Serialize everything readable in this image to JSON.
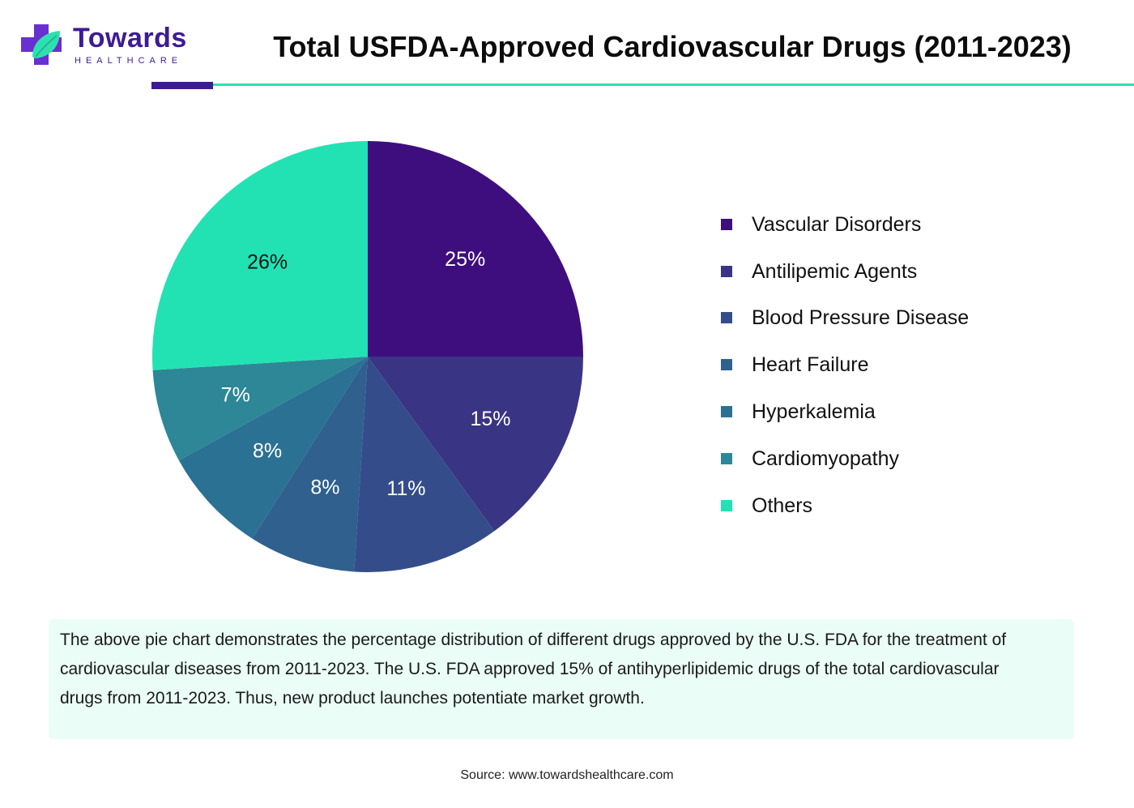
{
  "logo": {
    "wordmark": "Towards",
    "subtitle": "HEALTHCARE"
  },
  "header": {
    "title": "Total USFDA-Approved Cardiovascular Drugs (2011-2023)"
  },
  "colors": {
    "accent": "#3d1b94",
    "rule": "#2ee0b0",
    "note_bg": "#eafdf6"
  },
  "chart_data": {
    "type": "pie",
    "title": "Total USFDA-Approved Cardiovascular Drugs (2011-2023)",
    "start_angle": "12 o'clock",
    "direction": "clockwise",
    "legend_position": "right",
    "slices": [
      {
        "name": "Vascular Disorders",
        "value": 25,
        "label": "25%",
        "color": "#3e0e7e",
        "label_color": "#ffffff"
      },
      {
        "name": "Antilipemic Agents",
        "value": 15,
        "label": "15%",
        "color": "#3a3484",
        "label_color": "#ffffff"
      },
      {
        "name": "Blood Pressure Disease",
        "value": 11,
        "label": "11%",
        "color": "#344d8a",
        "label_color": "#ffffff"
      },
      {
        "name": "Heart Failure",
        "value": 8,
        "label": "8%",
        "color": "#2f608e",
        "label_color": "#ffffff"
      },
      {
        "name": "Hyperkalemia",
        "value": 8,
        "label": "8%",
        "color": "#2b7193",
        "label_color": "#ffffff"
      },
      {
        "name": "Cardiomyopathy",
        "value": 7,
        "label": "7%",
        "color": "#2d8796",
        "label_color": "#ffffff"
      },
      {
        "name": "Others",
        "value": 26,
        "label": "26%",
        "color": "#22e2b4",
        "label_color": "#111111"
      }
    ]
  },
  "note": {
    "text": "The above pie chart demonstrates the percentage distribution of different drugs approved by the U.S. FDA for the treatment of cardiovascular diseases from 2011-2023. The U.S. FDA approved 15% of antihyperlipidemic drugs of the total cardiovascular drugs from 2011-2023. Thus, new product launches potentiate market growth."
  },
  "source": {
    "text": "Source: www.towardshealthcare.com"
  }
}
